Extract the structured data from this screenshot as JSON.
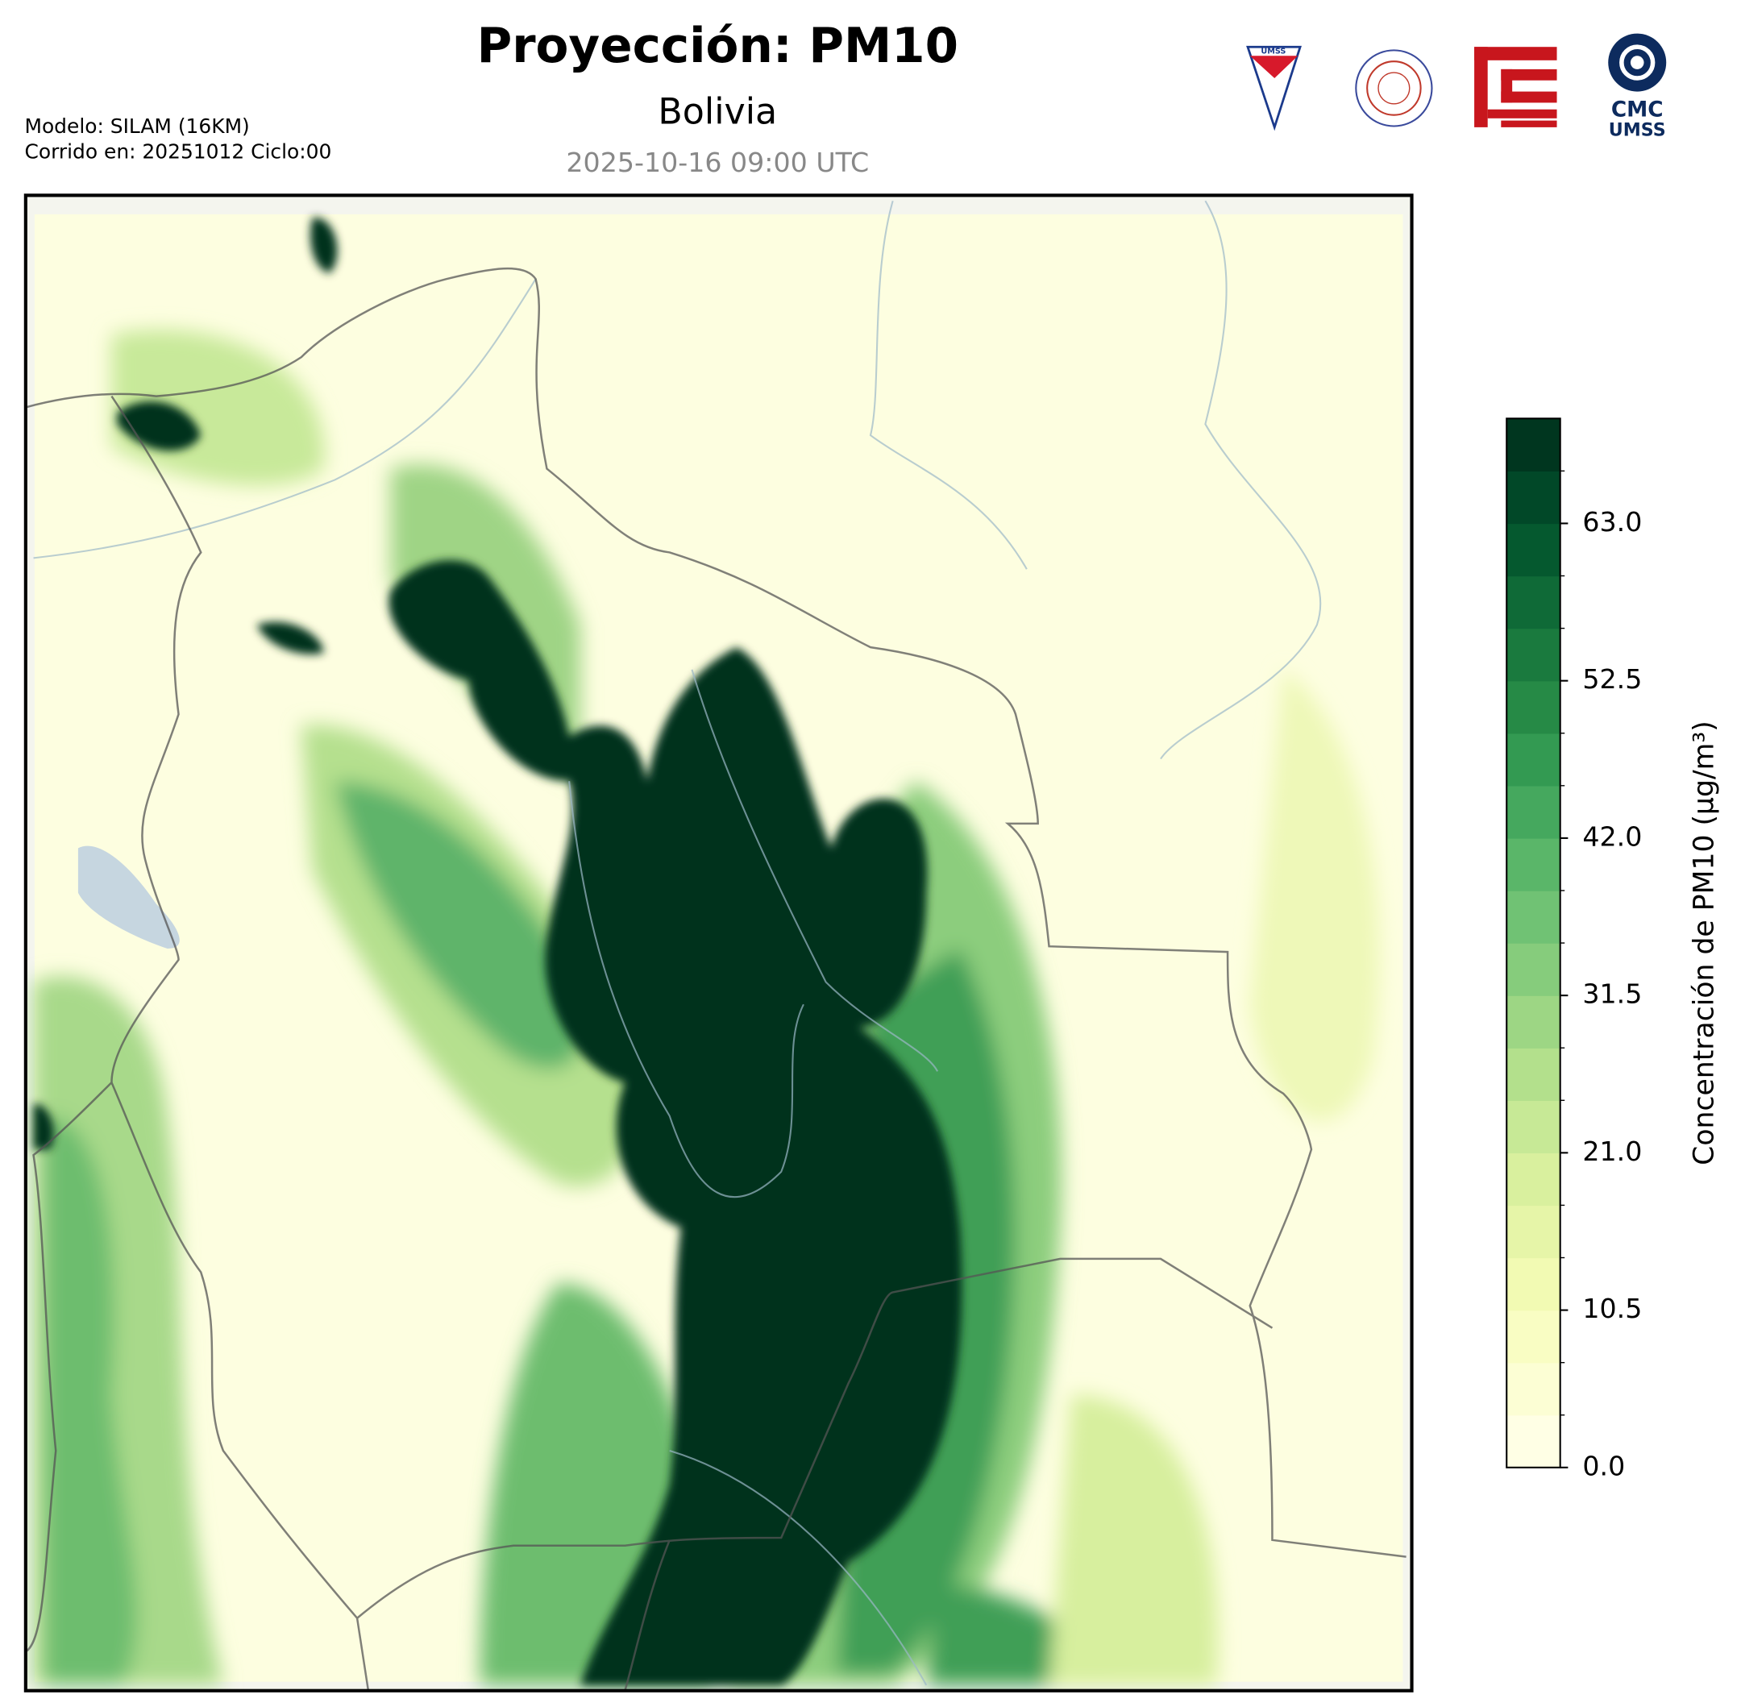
{
  "chart_data": {
    "type": "colorbar-map",
    "title": "Proyección: PM10",
    "subtitle": "Bolivia",
    "date": "2025-10-16 09:00 UTC",
    "model": "Modelo: SILAM (16KM)",
    "run": "Corrido en: 20251012 Ciclo:00",
    "colorbar_label": "Concentración de PM10 (µg/m³)",
    "clim": [
      0,
      70
    ],
    "yticks": [
      {
        "value": 0,
        "label": "0.0"
      },
      10.5,
      {
        "value": 21,
        "label": "21.0"
      },
      31.5,
      {
        "value": 42,
        "label": "42.0"
      },
      52.5,
      {
        "value": 63,
        "label": "63.0"
      }
    ],
    "colors": [
      "#ffffe5",
      "#fcfed4",
      "#f9fdc3",
      "#f2fab3",
      "#e6f5a8",
      "#d9f09e",
      "#c7e996",
      "#b3e08c",
      "#9dd684",
      "#86cc7c",
      "#70c274",
      "#5ab669",
      "#45a85e",
      "#339a52",
      "#268a46",
      "#1a7a3e",
      "#0f6a37",
      "#05592f",
      "#014828",
      "#00361f"
    ],
    "logo_text": [
      "UMSS",
      "CMC",
      "UMSS"
    ]
  }
}
